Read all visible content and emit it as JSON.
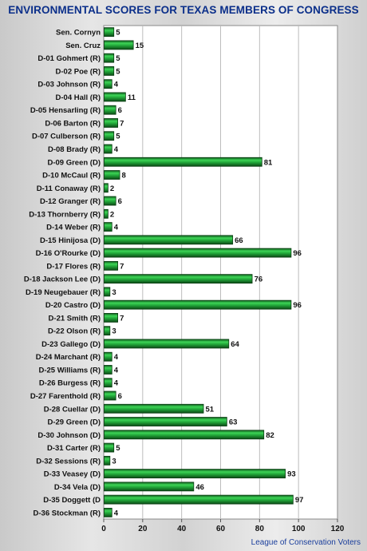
{
  "chart_data": {
    "type": "bar",
    "orientation": "horizontal",
    "title": "ENVIRONMENTAL SCORES FOR TEXAS MEMBERS OF CONGRESS",
    "source": "League of Conservation Voters",
    "xlim": [
      0,
      120
    ],
    "x_ticks": [
      "0",
      "20",
      "40",
      "60",
      "80",
      "100",
      "120"
    ],
    "grid": "vertical",
    "bar_color": "#22a83a",
    "categories": [
      "Sen. Cornyn",
      "Sen. Cruz",
      "D-01 Gohmert (R)",
      "D-02 Poe (R)",
      "D-03 Johnson (R)",
      "D-04 Hall (R)",
      "D-05 Hensarling (R)",
      "D-06 Barton (R)",
      "D-07 Culberson (R)",
      "D-08 Brady (R)",
      "D-09 Green (D)",
      "D-10 McCaul (R)",
      "D-11 Conaway (R)",
      "D-12 Granger (R)",
      "D-13 Thornberry (R)",
      "D-14 Weber (R)",
      "D-15 Hinijosa (D)",
      "D-16 O'Rourke (D)",
      "D-17 Flores (R)",
      "D-18 Jackson Lee (D)",
      "D-19 Neugebauer (R)",
      "D-20 Castro (D)",
      "D-21 Smith (R)",
      "D-22 Olson (R)",
      "D-23 Gallego (D)",
      "D-24 Marchant (R)",
      "D-25 Williams (R)",
      "D-26 Burgess (R)",
      "D-27 Farenthold (R)",
      "D-28 Cuellar (D)",
      "D-29 Green (D)",
      "D-30 Johnson (D)",
      "D-31 Carter (R)",
      "D-32 Sessions (R)",
      "D-33 Veasey (D)",
      "D-34 Vela (D)",
      "D-35 Doggett (D",
      "D-36 Stockman (R)"
    ],
    "values": [
      5,
      15,
      5,
      5,
      4,
      11,
      6,
      7,
      5,
      4,
      81,
      8,
      2,
      6,
      2,
      4,
      66,
      96,
      7,
      76,
      3,
      96,
      7,
      3,
      64,
      4,
      4,
      4,
      6,
      51,
      63,
      82,
      5,
      3,
      93,
      46,
      97,
      4
    ]
  }
}
